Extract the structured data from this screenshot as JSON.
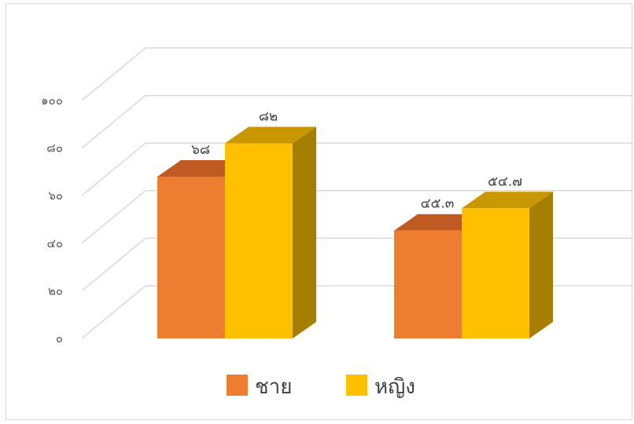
{
  "chart_data": {
    "type": "bar",
    "style": "3d-clustered-column",
    "categories": [
      "",
      ""
    ],
    "series": [
      {
        "name": "ชาย",
        "values": [
          68,
          45.3
        ],
        "labels": [
          "๖๘",
          "๔๕.๓"
        ],
        "color": "#ED7D31",
        "top_color": "#C05A23",
        "side_color": "#B56020"
      },
      {
        "name": "หญิง",
        "values": [
          82,
          54.7
        ],
        "labels": [
          "๘๒",
          "๕๔.๗"
        ],
        "color": "#FFC000",
        "top_color": "#C99700",
        "side_color": "#A67E00"
      }
    ],
    "ylim": [
      0,
      100
    ],
    "yticks": [
      {
        "value": 0,
        "label": "๐"
      },
      {
        "value": 20,
        "label": "๒๐"
      },
      {
        "value": 40,
        "label": "๔๐"
      },
      {
        "value": 60,
        "label": "๖๐"
      },
      {
        "value": 80,
        "label": "๘๐"
      },
      {
        "value": 100,
        "label": "๑๐๐"
      }
    ],
    "grid": true,
    "legend_position": "bottom",
    "title": "",
    "xlabel": "",
    "ylabel": ""
  }
}
